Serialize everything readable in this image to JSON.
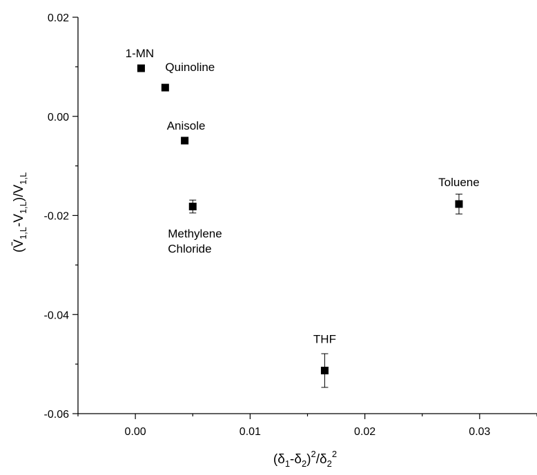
{
  "chart_data": {
    "type": "scatter",
    "title": "",
    "xlabel": "(δ1-δ2)²/δ2²",
    "ylabel": "(V̄1,L-V1,L)/V1,L",
    "xlim": [
      -0.005,
      0.035
    ],
    "ylim": [
      -0.06,
      0.02
    ],
    "x_ticks": [
      0.0,
      0.01,
      0.02,
      0.03
    ],
    "x_tick_labels": [
      "0.00",
      "0.01",
      "0.02",
      "0.03"
    ],
    "y_ticks": [
      0.02,
      0.0,
      -0.02,
      -0.04,
      -0.06
    ],
    "y_tick_labels": [
      "0.02",
      "0.00",
      "-0.02",
      "-0.04",
      "-0.06"
    ],
    "grid": false,
    "legend": "none",
    "marker": "square",
    "color": "#000000",
    "points": [
      {
        "label": "1-MN",
        "x": 0.0005,
        "y": 0.0097,
        "err": 0.0
      },
      {
        "label": "Quinoline",
        "x": 0.0026,
        "y": 0.0058,
        "err": 0.0
      },
      {
        "label": "Anisole",
        "x": 0.0043,
        "y": -0.0049,
        "err": 0.0
      },
      {
        "label": "Methylene Chloride",
        "label_lines": [
          "Methylene",
          "Chloride"
        ],
        "x": 0.005,
        "y": -0.0182,
        "err": 0.0013
      },
      {
        "label": "THF",
        "x": 0.0165,
        "y": -0.0513,
        "err": 0.0034
      },
      {
        "label": "Toluene",
        "x": 0.0282,
        "y": -0.0177,
        "err": 0.002
      }
    ]
  }
}
